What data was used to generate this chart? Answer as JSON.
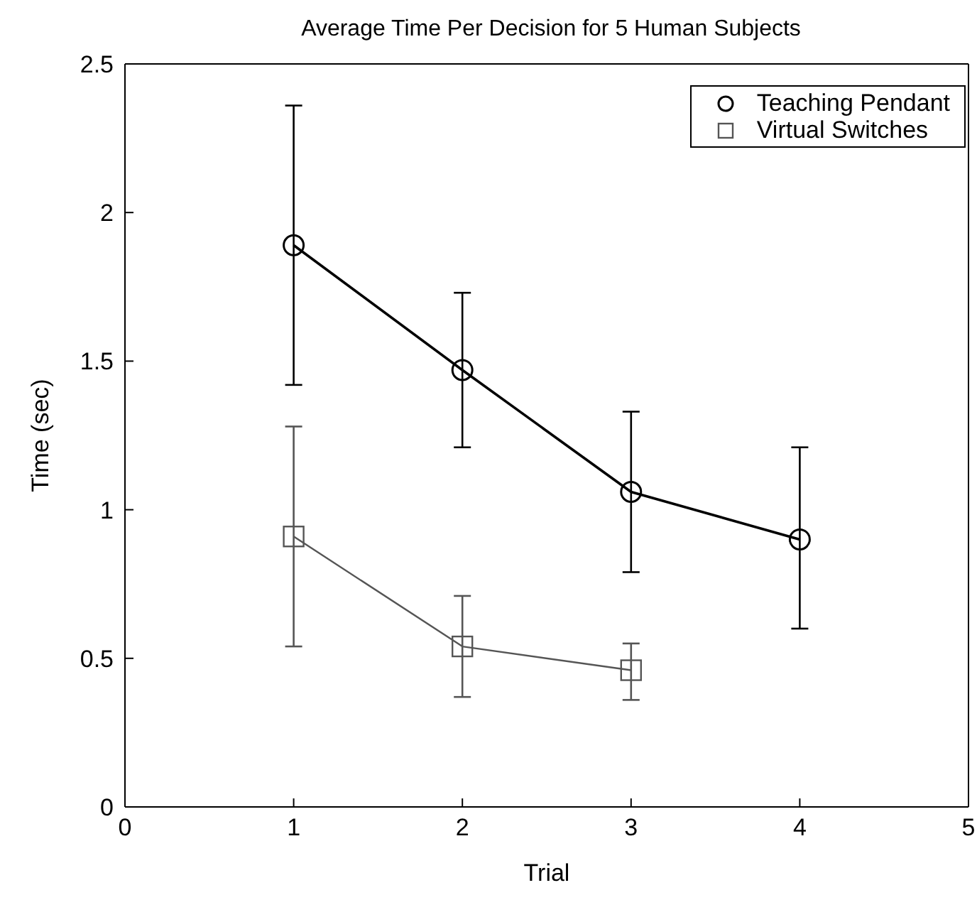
{
  "chart_data": {
    "type": "line",
    "title": "Average Time Per Decision for 5 Human Subjects",
    "xlabel": "Trial",
    "ylabel": "Time (sec)",
    "x": [
      1,
      2,
      3,
      4
    ],
    "series": [
      {
        "name": "Teaching Pendant",
        "color": "#000000",
        "marker": "circle",
        "values": [
          1.89,
          1.47,
          1.06,
          0.9
        ],
        "errors": [
          [
            1.42,
            2.36
          ],
          [
            1.21,
            1.73
          ],
          [
            0.79,
            1.33
          ],
          [
            0.6,
            1.21
          ]
        ]
      },
      {
        "name": "Virtual Switches",
        "color": "#555555",
        "marker": "square",
        "x": [
          1,
          2,
          3
        ],
        "values": [
          0.91,
          0.54,
          0.46
        ],
        "errors": [
          [
            0.54,
            1.28
          ],
          [
            0.37,
            0.71
          ],
          [
            0.36,
            0.55
          ]
        ]
      }
    ],
    "xlim": [
      0,
      5
    ],
    "xticks": [
      0,
      1,
      2,
      3,
      4,
      5
    ],
    "ylim": [
      0,
      2.5
    ],
    "yticks": [
      0,
      0.5,
      1,
      1.5,
      2,
      2.5
    ],
    "grid": false,
    "legend": "top right"
  }
}
